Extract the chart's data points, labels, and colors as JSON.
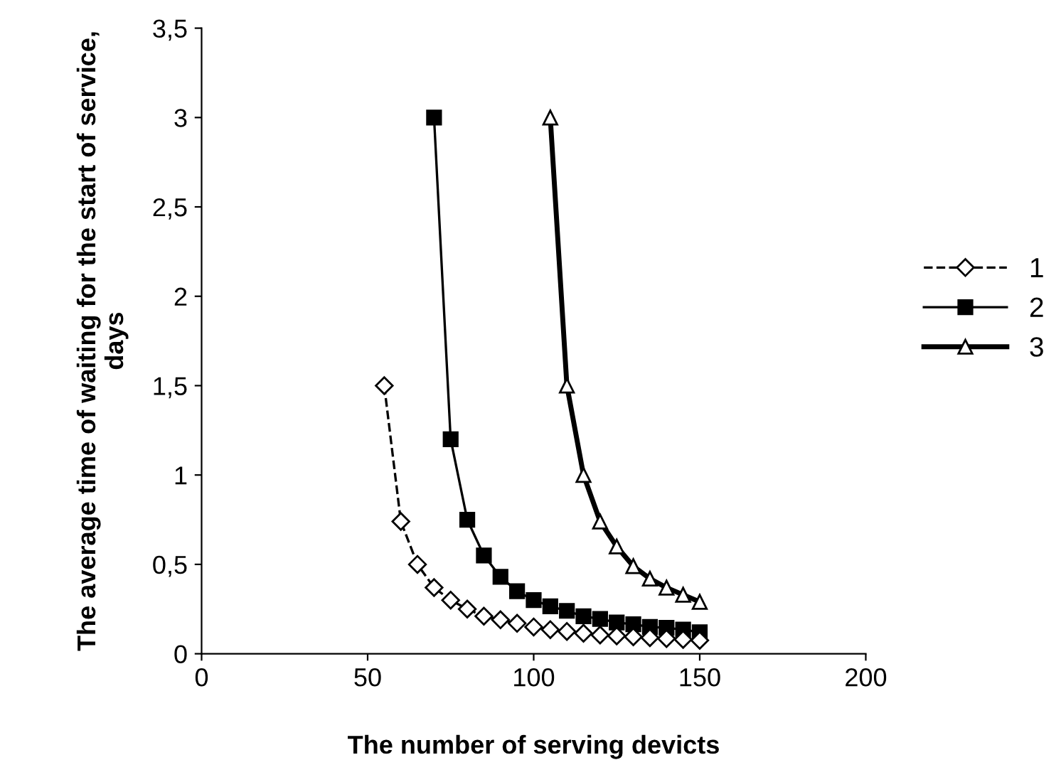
{
  "chart_data": {
    "type": "line",
    "xlabel": "The number of serving devicts",
    "ylabel": "The average time of waiting for the start of service, days",
    "xlim": [
      0,
      200
    ],
    "xticks": [
      0,
      50,
      100,
      150,
      200
    ],
    "ylim": [
      0,
      3.5
    ],
    "yticks": [
      0,
      {
        "value": 0.5,
        "label": "0,5"
      },
      1,
      {
        "value": 1.5,
        "label": "1,5"
      },
      2,
      {
        "value": 2.5,
        "label": "2,5"
      },
      3,
      {
        "value": 3.5,
        "label": "3,5"
      }
    ],
    "grid": false,
    "legend": "right",
    "series": [
      {
        "name": "1",
        "color": "#000000",
        "marker": "diamond",
        "line_style": "dashed",
        "x": [
          55,
          60,
          65,
          70,
          75,
          80,
          85,
          90,
          95,
          100,
          105,
          110,
          115,
          120,
          125,
          130,
          135,
          140,
          145,
          150
        ],
        "values": [
          1.5,
          0.74,
          0.5,
          0.37,
          0.3,
          0.25,
          0.21,
          0.19,
          0.17,
          0.15,
          0.135,
          0.125,
          0.115,
          0.105,
          0.1,
          0.095,
          0.09,
          0.085,
          0.08,
          0.075
        ]
      },
      {
        "name": "2",
        "color": "#000000",
        "marker": "square",
        "line_style": "solid",
        "x": [
          70,
          75,
          80,
          85,
          90,
          95,
          100,
          105,
          110,
          115,
          120,
          125,
          130,
          135,
          140,
          145,
          150
        ],
        "values": [
          3.0,
          1.2,
          0.75,
          0.55,
          0.43,
          0.35,
          0.3,
          0.265,
          0.24,
          0.21,
          0.195,
          0.175,
          0.165,
          0.15,
          0.145,
          0.135,
          0.12
        ]
      },
      {
        "name": "3",
        "color": "#000000",
        "marker": "triangle",
        "line_style": "solid",
        "x": [
          105,
          110,
          115,
          120,
          125,
          130,
          135,
          140,
          145,
          150
        ],
        "values": [
          3.0,
          1.5,
          1.0,
          0.74,
          0.6,
          0.49,
          0.42,
          0.37,
          0.33,
          0.29
        ]
      }
    ]
  }
}
